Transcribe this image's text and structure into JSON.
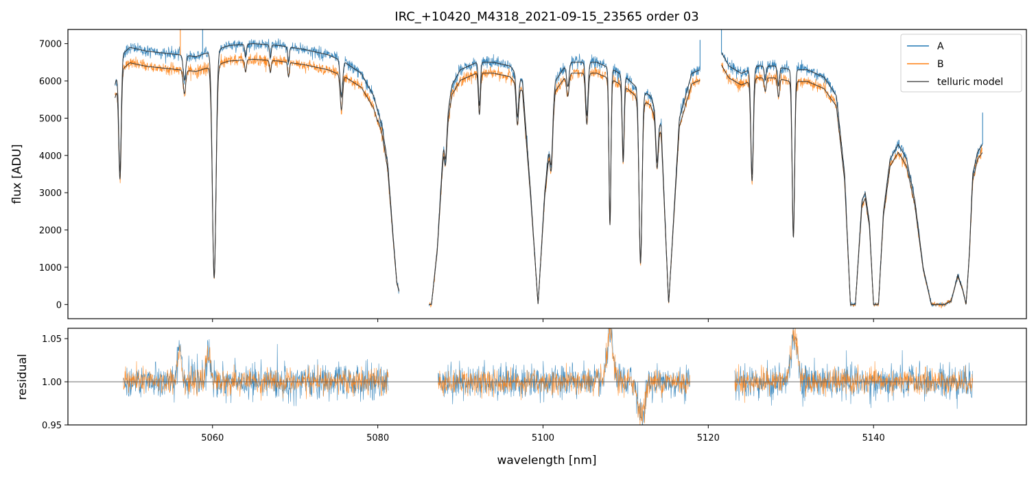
{
  "chart_data": [
    {
      "id": "top",
      "type": "line",
      "title": "IRC_+10420_M4318_2021-09-15_23565  order 03",
      "xlabel": "",
      "ylabel": "flux [ADU]",
      "xlim": [
        5042.5,
        5158.5
      ],
      "ylim": [
        -380,
        7380
      ],
      "yticks": [
        0,
        1000,
        2000,
        3000,
        4000,
        5000,
        6000,
        7000
      ],
      "xticks": [
        5060,
        5080,
        5100,
        5120,
        5140
      ],
      "grid": false,
      "legend": {
        "position": "top-right",
        "entries": [
          {
            "label": "A",
            "color": "#1f77b4"
          },
          {
            "label": "B",
            "color": "#ff7f0e"
          },
          {
            "label": "telluric model",
            "color": "#555555"
          }
        ]
      },
      "series": [
        {
          "name": "A",
          "color": "#1f77b4",
          "noise": 80
        },
        {
          "name": "B",
          "color": "#ff7f0e",
          "noise": 80
        },
        {
          "name": "telluric model",
          "color": "#333333",
          "noise": 0
        }
      ],
      "continuum_A": {
        "x": [
          5048.2,
          5049.0,
          5050.0,
          5052.0,
          5054.0,
          5056.0,
          5058.0,
          5060.0,
          5062.0,
          5065.0,
          5068.0,
          5071.0,
          5074.0,
          5076.0,
          5078.0,
          5079.5,
          5080.5,
          5081.2,
          5081.8,
          5082.3,
          5083.0,
          5086.5,
          5087.2,
          5088.0,
          5089.0,
          5090.0,
          5092.0,
          5094.0,
          5096.0,
          5097.5,
          5098.5,
          5099.4,
          5100.2,
          5101.5,
          5103.0,
          5104.5,
          5106.5,
          5108.5,
          5110.0,
          5111.5,
          5113.0,
          5114.3,
          5115.2,
          5116.5,
          5118.0,
          5119.0,
          5121.5,
          5122.5,
          5124.0,
          5126.0,
          5128.0,
          5130.0,
          5132.0,
          5134.0,
          5135.5,
          5136.5,
          5137.2,
          5137.8,
          5138.6,
          5139.0,
          5139.5,
          5140.0,
          5140.6,
          5141.2,
          5142.0,
          5143.0,
          5144.0,
          5145.0,
          5146.0,
          5147.0,
          5147.8,
          5148.6,
          5149.4,
          5150.2,
          5150.8,
          5151.2,
          5151.6,
          5152.0,
          5152.6,
          5153.2
        ],
        "y": [
          5900,
          6700,
          6900,
          6800,
          6750,
          6700,
          6650,
          6800,
          6950,
          7000,
          6950,
          6850,
          6700,
          6500,
          6200,
          5600,
          4800,
          3800,
          2000,
          600,
          0,
          0,
          1500,
          4500,
          5900,
          6300,
          6500,
          6500,
          6400,
          6000,
          3000,
          0,
          3000,
          6000,
          6500,
          6500,
          6500,
          6300,
          6100,
          5800,
          5600,
          4800,
          0,
          5000,
          6200,
          6300,
          6800,
          6400,
          6200,
          6400,
          6400,
          6300,
          6300,
          6100,
          5600,
          3500,
          0,
          0,
          2800,
          3000,
          2200,
          0,
          0,
          2500,
          3900,
          4300,
          3900,
          2800,
          1000,
          0,
          0,
          0,
          100,
          800,
          400,
          0,
          1400,
          3500,
          4100,
          4300
        ]
      },
      "ratio_B": 0.94,
      "telluric_lines": [
        {
          "x": 5048.8,
          "depth": 0.45,
          "width": 0.15
        },
        {
          "x": 5056.6,
          "depth": 0.1,
          "width": 0.15
        },
        {
          "x": 5060.2,
          "depth": 0.89,
          "width": 0.22
        },
        {
          "x": 5064.0,
          "depth": 0.05,
          "width": 0.1
        },
        {
          "x": 5067.0,
          "depth": 0.05,
          "width": 0.1
        },
        {
          "x": 5069.2,
          "depth": 0.06,
          "width": 0.1
        },
        {
          "x": 5075.6,
          "depth": 0.15,
          "width": 0.15
        },
        {
          "x": 5088.2,
          "depth": 0.18,
          "width": 0.15
        },
        {
          "x": 5092.3,
          "depth": 0.18,
          "width": 0.12
        },
        {
          "x": 5096.9,
          "depth": 0.18,
          "width": 0.15
        },
        {
          "x": 5101.0,
          "depth": 0.22,
          "width": 0.15
        },
        {
          "x": 5103.0,
          "depth": 0.1,
          "width": 0.15
        },
        {
          "x": 5105.3,
          "depth": 0.22,
          "width": 0.15
        },
        {
          "x": 5108.1,
          "depth": 0.65,
          "width": 0.12
        },
        {
          "x": 5109.7,
          "depth": 0.35,
          "width": 0.12
        },
        {
          "x": 5111.8,
          "depth": 0.8,
          "width": 0.18
        },
        {
          "x": 5113.8,
          "depth": 0.25,
          "width": 0.15
        },
        {
          "x": 5125.3,
          "depth": 0.45,
          "width": 0.15
        },
        {
          "x": 5126.9,
          "depth": 0.06,
          "width": 0.12
        },
        {
          "x": 5128.5,
          "depth": 0.08,
          "width": 0.12
        },
        {
          "x": 5130.3,
          "depth": 0.7,
          "width": 0.15
        }
      ],
      "segments": [
        [
          5048.2,
          5082.6
        ],
        [
          5086.2,
          5119.0
        ],
        [
          5121.6,
          5153.2
        ]
      ],
      "spikes": [
        {
          "x": 5056.1,
          "series": "B",
          "to": 7380
        },
        {
          "x": 5058.8,
          "series": "A",
          "to": 7380
        },
        {
          "x": 5119.0,
          "series": "A",
          "to": 7100
        },
        {
          "x": 5121.6,
          "series": "A",
          "to": 7380
        },
        {
          "x": 5153.2,
          "series": "A",
          "to": 5150
        }
      ]
    },
    {
      "id": "bottom",
      "type": "line",
      "title": "",
      "xlabel": "wavelength [nm]",
      "ylabel": "residual",
      "xlim": [
        5042.5,
        5158.5
      ],
      "ylim": [
        0.95,
        1.062
      ],
      "yticks": [
        0.95,
        1.0,
        1.05
      ],
      "ytick_labels": [
        "0.95",
        "1.00",
        "1.05"
      ],
      "xticks": [
        5060,
        5080,
        5100,
        5120,
        5140
      ],
      "reference_line": 1.0,
      "grid": false,
      "series": [
        {
          "name": "A",
          "color": "#1f77b4",
          "noise": 0.017
        },
        {
          "name": "B",
          "color": "#ff7f0e",
          "noise": 0.012
        }
      ],
      "segments": [
        [
          5049.2,
          5081.3
        ],
        [
          5087.3,
          5117.8
        ],
        [
          5123.2,
          5152.0
        ]
      ],
      "features": [
        {
          "x": 5056.0,
          "amp": 0.04,
          "width": 0.25
        },
        {
          "x": 5059.5,
          "amp": 0.03,
          "width": 0.3
        },
        {
          "x": 5108.1,
          "amp": 0.055,
          "width": 0.35
        },
        {
          "x": 5111.9,
          "amp": -0.04,
          "width": 0.4
        },
        {
          "x": 5130.4,
          "amp": 0.055,
          "width": 0.4
        }
      ]
    }
  ]
}
